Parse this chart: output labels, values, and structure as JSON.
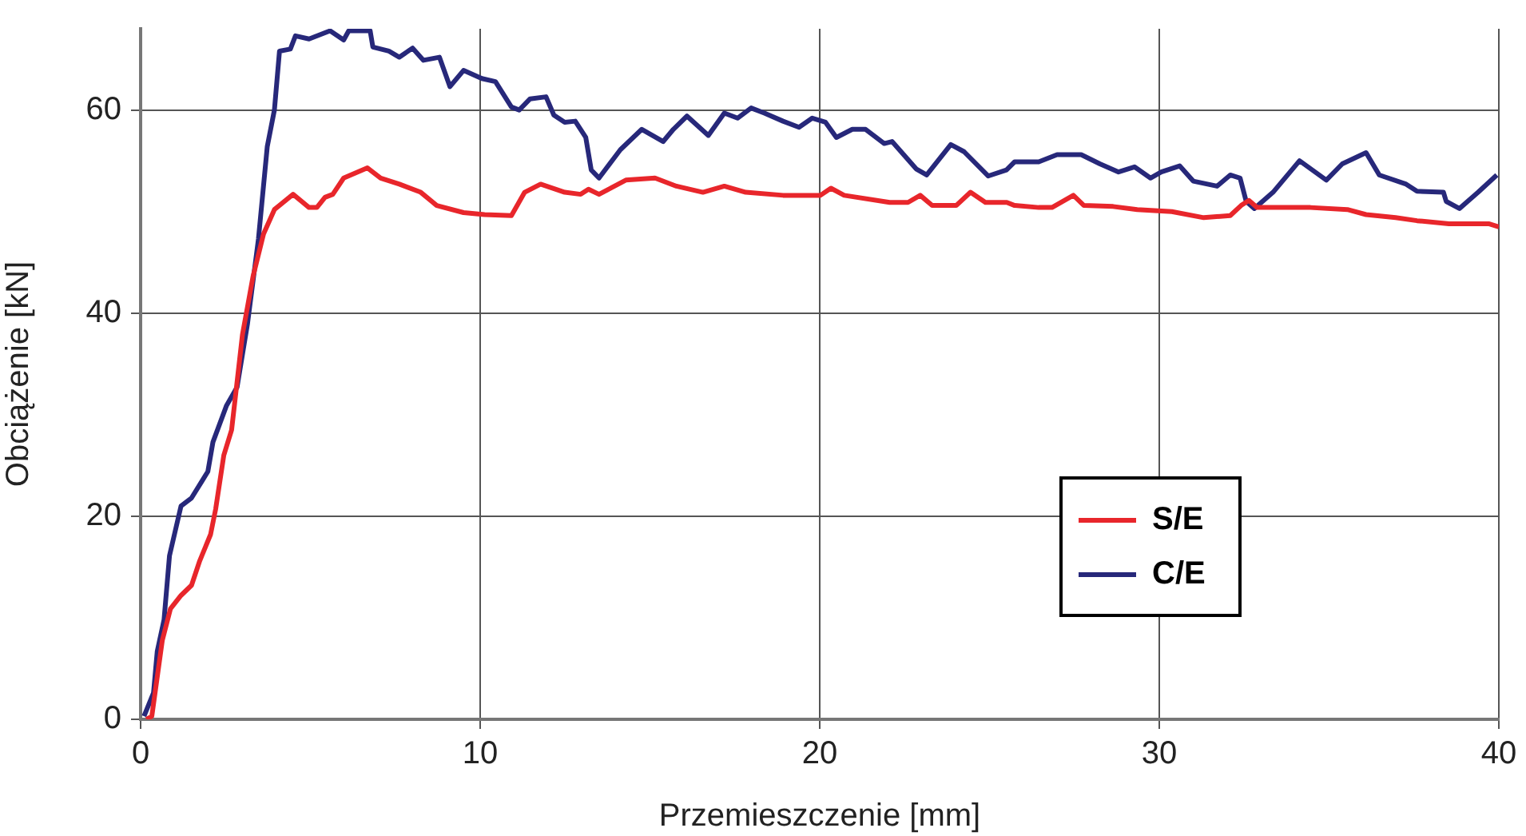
{
  "chart_data": {
    "type": "line",
    "xlabel": "Przemieszczenie [mm]",
    "ylabel": "Obciążenie [kN]",
    "xlim": [
      0,
      40
    ],
    "ylim": [
      0,
      68
    ],
    "xticks": [
      0,
      10,
      20,
      30,
      40
    ],
    "yticks": [
      0,
      20,
      40,
      60
    ],
    "grid": true,
    "legend": "bottom right",
    "marker": "none",
    "line_style": "solid",
    "series": [
      {
        "name": "S/E",
        "color": "#e8262b",
        "x": [
          0.17,
          0.33,
          0.64,
          0.88,
          1.19,
          1.5,
          1.74,
          2.06,
          2.21,
          2.45,
          2.68,
          3.0,
          3.31,
          3.62,
          3.94,
          4.49,
          4.96,
          5.19,
          5.43,
          5.66,
          5.98,
          6.68,
          7.07,
          7.62,
          8.25,
          8.72,
          9.51,
          10.13,
          10.92,
          11.31,
          11.78,
          12.49,
          12.96,
          13.19,
          13.5,
          14.29,
          15.15,
          15.78,
          16.56,
          17.19,
          17.82,
          18.92,
          20.02,
          20.33,
          20.72,
          22.06,
          22.6,
          22.96,
          23.31,
          24.02,
          24.44,
          24.88,
          25.51,
          25.74,
          26.45,
          26.84,
          27.47,
          27.78,
          28.64,
          29.35,
          30.37,
          31.31,
          32.09,
          32.41,
          32.64,
          32.88,
          34.45,
          35.54,
          36.09,
          36.96,
          37.59,
          38.53,
          39.7,
          40
        ],
        "values": [
          0,
          0.3,
          7.8,
          10.9,
          12.2,
          13.2,
          15.6,
          18.2,
          20.7,
          26.0,
          28.5,
          37.9,
          43.6,
          47.8,
          50.2,
          51.7,
          50.4,
          50.4,
          51.4,
          51.7,
          53.3,
          54.3,
          53.3,
          52.7,
          51.9,
          50.6,
          49.9,
          49.7,
          49.6,
          51.9,
          52.7,
          51.9,
          51.7,
          52.2,
          51.7,
          53.1,
          53.3,
          52.5,
          51.9,
          52.5,
          51.9,
          51.6,
          51.6,
          52.3,
          51.6,
          50.9,
          50.9,
          51.6,
          50.6,
          50.6,
          51.9,
          50.9,
          50.9,
          50.6,
          50.4,
          50.4,
          51.6,
          50.6,
          50.5,
          50.2,
          50.0,
          49.4,
          49.6,
          50.6,
          51.1,
          50.4,
          50.4,
          50.2,
          49.7,
          49.4,
          49.1,
          48.8,
          48.8,
          48.5
        ]
      },
      {
        "name": "C/E",
        "color": "#27287a",
        "x": [
          0.1,
          0.38,
          0.49,
          0.69,
          0.85,
          1.19,
          1.5,
          1.98,
          2.13,
          2.53,
          2.84,
          3.15,
          3.47,
          3.73,
          3.94,
          4.09,
          4.41,
          4.56,
          4.96,
          5.58,
          5.98,
          6.13,
          6.76,
          6.84,
          7.31,
          7.62,
          8.01,
          8.33,
          8.8,
          9.11,
          9.51,
          10.05,
          10.45,
          10.92,
          11.15,
          11.47,
          11.94,
          12.17,
          12.49,
          12.8,
          13.11,
          13.27,
          13.5,
          14.13,
          14.76,
          15.39,
          15.69,
          16.09,
          16.72,
          17.19,
          17.58,
          17.98,
          18.37,
          18.92,
          19.39,
          19.78,
          20.17,
          20.49,
          20.96,
          21.35,
          21.9,
          22.13,
          22.84,
          23.15,
          23.86,
          24.25,
          24.96,
          25.5,
          25.74,
          26.45,
          26.99,
          27.7,
          28.25,
          28.8,
          29.27,
          29.74,
          30.06,
          30.6,
          31.0,
          31.7,
          32.09,
          32.38,
          32.56,
          32.8,
          33.35,
          34.13,
          34.92,
          35.39,
          36.09,
          36.48,
          37.27,
          37.59,
          38.37,
          38.45,
          38.84,
          39.39,
          39.94
        ],
        "values": [
          0.3,
          2.6,
          6.7,
          9.8,
          16.1,
          21.0,
          21.8,
          24.4,
          27.3,
          30.9,
          32.7,
          39.0,
          47.3,
          56.4,
          60.0,
          65.8,
          66.0,
          67.3,
          67.0,
          67.8,
          66.9,
          67.8,
          67.8,
          66.2,
          65.8,
          65.2,
          66.1,
          64.9,
          65.2,
          62.3,
          63.9,
          63.1,
          62.8,
          60.3,
          60.0,
          61.1,
          61.3,
          59.5,
          58.8,
          58.9,
          57.3,
          54.1,
          53.3,
          56.1,
          58.1,
          56.9,
          58.1,
          59.4,
          57.5,
          59.7,
          59.2,
          60.2,
          59.7,
          58.9,
          58.3,
          59.2,
          58.8,
          57.3,
          58.1,
          58.1,
          56.7,
          56.9,
          54.2,
          53.6,
          56.6,
          55.9,
          53.5,
          54.1,
          54.9,
          54.9,
          55.6,
          55.6,
          54.7,
          53.9,
          54.4,
          53.3,
          53.9,
          54.5,
          53.0,
          52.5,
          53.6,
          53.3,
          51.0,
          50.3,
          51.9,
          55.0,
          53.1,
          54.7,
          55.8,
          53.6,
          52.7,
          52.0,
          51.9,
          51.0,
          50.3,
          51.9,
          53.6
        ]
      }
    ]
  }
}
